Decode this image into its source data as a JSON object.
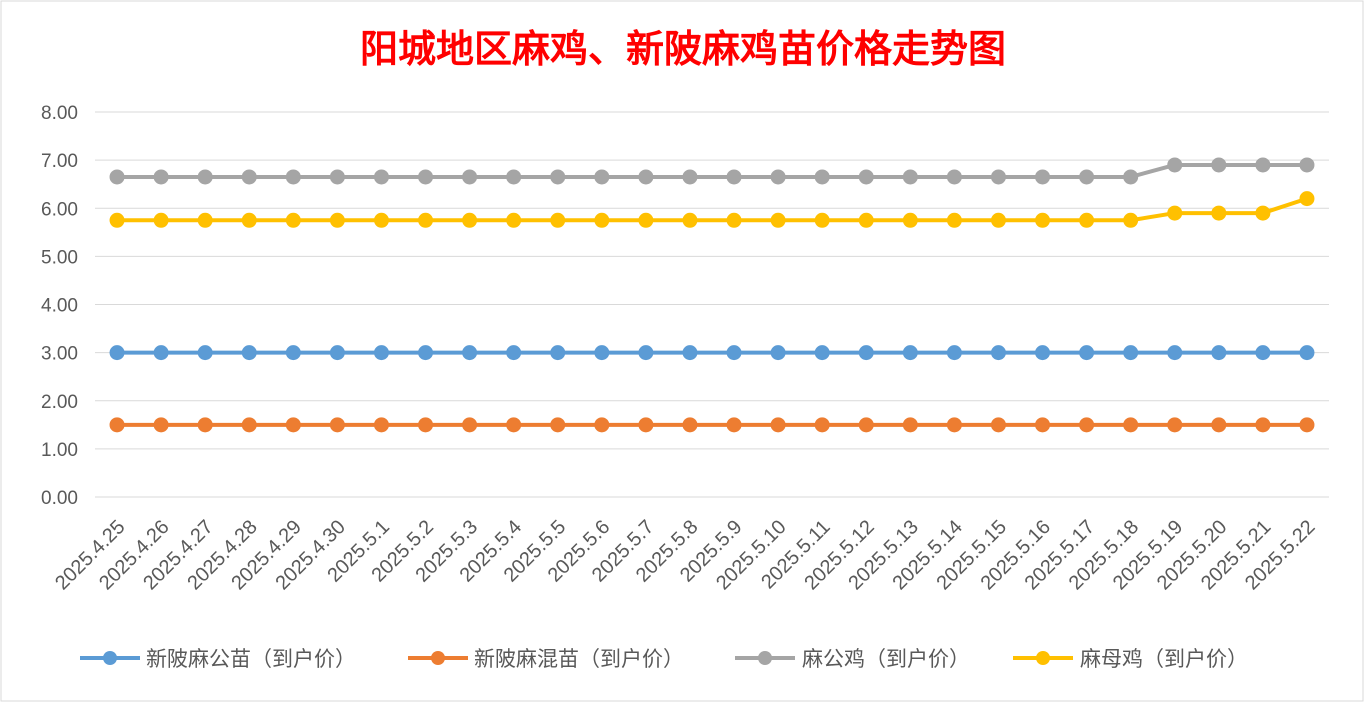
{
  "chart_data": {
    "type": "line",
    "title": "阳城地区麻鸡、新陂麻鸡苗价格走势图",
    "title_color": "#FF0000",
    "xlabel": "",
    "ylabel": "",
    "ylim": [
      0,
      8
    ],
    "ytick_labels": [
      "0.00",
      "1.00",
      "2.00",
      "3.00",
      "4.00",
      "5.00",
      "6.00",
      "7.00",
      "8.00"
    ],
    "grid": true,
    "legend": "bottom",
    "categories": [
      "2025.4.25",
      "2025.4.26",
      "2025.4.27",
      "2025.4.28",
      "2025.4.29",
      "2025.4.30",
      "2025.5.1",
      "2025.5.2",
      "2025.5.3",
      "2025.5.4",
      "2025.5.5",
      "2025.5.6",
      "2025.5.7",
      "2025.5.8",
      "2025.5.9",
      "2025.5.10",
      "2025.5.11",
      "2025.5.12",
      "2025.5.13",
      "2025.5.14",
      "2025.5.15",
      "2025.5.16",
      "2025.5.17",
      "2025.5.18",
      "2025.5.19",
      "2025.5.20",
      "2025.5.21",
      "2025.5.22"
    ],
    "series": [
      {
        "name": "新陂麻公苗（到户价）",
        "color": "#5B9BD5",
        "values": [
          3.0,
          3.0,
          3.0,
          3.0,
          3.0,
          3.0,
          3.0,
          3.0,
          3.0,
          3.0,
          3.0,
          3.0,
          3.0,
          3.0,
          3.0,
          3.0,
          3.0,
          3.0,
          3.0,
          3.0,
          3.0,
          3.0,
          3.0,
          3.0,
          3.0,
          3.0,
          3.0,
          3.0
        ]
      },
      {
        "name": "新陂麻混苗（到户价）",
        "color": "#ED7D31",
        "values": [
          1.5,
          1.5,
          1.5,
          1.5,
          1.5,
          1.5,
          1.5,
          1.5,
          1.5,
          1.5,
          1.5,
          1.5,
          1.5,
          1.5,
          1.5,
          1.5,
          1.5,
          1.5,
          1.5,
          1.5,
          1.5,
          1.5,
          1.5,
          1.5,
          1.5,
          1.5,
          1.5,
          1.5
        ]
      },
      {
        "name": "麻公鸡（到户价）",
        "color": "#A5A5A5",
        "values": [
          6.65,
          6.65,
          6.65,
          6.65,
          6.65,
          6.65,
          6.65,
          6.65,
          6.65,
          6.65,
          6.65,
          6.65,
          6.65,
          6.65,
          6.65,
          6.65,
          6.65,
          6.65,
          6.65,
          6.65,
          6.65,
          6.65,
          6.65,
          6.65,
          6.9,
          6.9,
          6.9,
          6.9
        ]
      },
      {
        "name": "麻母鸡（到户价）",
        "color": "#FFC000",
        "values": [
          5.75,
          5.75,
          5.75,
          5.75,
          5.75,
          5.75,
          5.75,
          5.75,
          5.75,
          5.75,
          5.75,
          5.75,
          5.75,
          5.75,
          5.75,
          5.75,
          5.75,
          5.75,
          5.75,
          5.75,
          5.75,
          5.75,
          5.75,
          5.75,
          5.9,
          5.9,
          5.9,
          6.2
        ]
      }
    ]
  }
}
